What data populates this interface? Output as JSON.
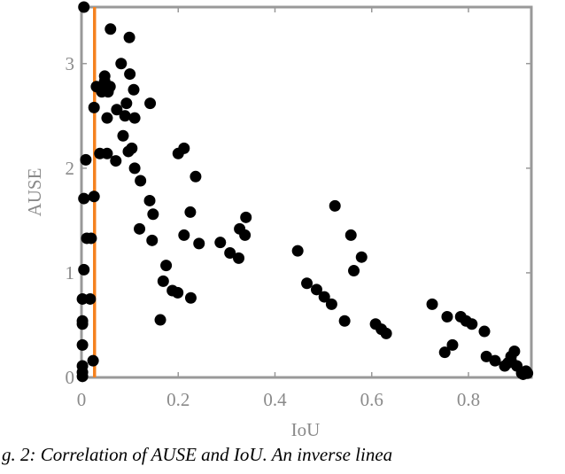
{
  "chart_data": {
    "type": "scatter",
    "x_label": "IoU",
    "y_label": "AUSE",
    "xlim": [
      0,
      0.93
    ],
    "ylim": [
      0,
      3.54
    ],
    "xticks": [
      0,
      0.2,
      0.4,
      0.6,
      0.8
    ],
    "yticks": [
      0,
      1,
      2,
      3
    ],
    "color": "#000000",
    "frame_color": "#999999",
    "vline": {
      "x": 0.027,
      "color": "#f5821f"
    },
    "caption": "g. 2: Correlation of AUSE and IoU. An inverse linea",
    "x": [
      0.005,
      0.06,
      0.099,
      0.082,
      0.048,
      0.048,
      0.051,
      0.059,
      0.055,
      0.031,
      0.1,
      0.042,
      0.108,
      0.026,
      0.073,
      0.093,
      0.142,
      0.053,
      0.09,
      0.11,
      0.086,
      0.009,
      0.104,
      0.097,
      0.053,
      0.038,
      0.071,
      0.2,
      0.212,
      0.11,
      0.122,
      0.236,
      0.141,
      0.005,
      0.026,
      0.148,
      0.225,
      0.12,
      0.146,
      0.212,
      0.243,
      0.287,
      0.307,
      0.011,
      0.02,
      0.327,
      0.34,
      0.338,
      0.325,
      0.447,
      0.524,
      0.557,
      0.579,
      0.563,
      0.005,
      0.175,
      0.169,
      0.188,
      0.199,
      0.226,
      0.466,
      0.486,
      0.502,
      0.517,
      0.163,
      0.544,
      0.002,
      0.018,
      0.002,
      0.002,
      0.002,
      0.024,
      0.002,
      0.002,
      0.002,
      0.608,
      0.62,
      0.63,
      0.725,
      0.756,
      0.784,
      0.795,
      0.807,
      0.833,
      0.767,
      0.751,
      0.837,
      0.855,
      0.882,
      0.895,
      0.888,
      0.888,
      0.875,
      0.9,
      0.919,
      0.91,
      0.913,
      0.922
    ],
    "y": [
      3.54,
      3.33,
      3.25,
      3.0,
      2.88,
      2.83,
      2.78,
      2.78,
      2.73,
      2.78,
      2.9,
      2.73,
      2.75,
      2.58,
      2.56,
      2.62,
      2.62,
      2.48,
      2.5,
      2.48,
      2.31,
      2.08,
      2.19,
      2.16,
      2.14,
      2.14,
      2.07,
      2.14,
      2.19,
      2.0,
      1.88,
      1.92,
      1.69,
      1.71,
      1.73,
      1.56,
      1.58,
      1.42,
      1.31,
      1.36,
      1.28,
      1.29,
      1.19,
      1.33,
      1.33,
      1.42,
      1.53,
      1.36,
      1.14,
      1.21,
      1.64,
      1.36,
      1.15,
      1.02,
      1.03,
      1.07,
      0.92,
      0.83,
      0.81,
      0.76,
      0.9,
      0.84,
      0.77,
      0.7,
      0.55,
      0.54,
      0.75,
      0.75,
      0.54,
      0.51,
      0.31,
      0.16,
      0.11,
      0.05,
      0.01,
      0.51,
      0.46,
      0.42,
      0.7,
      0.58,
      0.58,
      0.54,
      0.51,
      0.44,
      0.31,
      0.24,
      0.2,
      0.16,
      0.14,
      0.25,
      0.2,
      0.16,
      0.11,
      0.11,
      0.06,
      0.04,
      0.03,
      0.04
    ]
  }
}
